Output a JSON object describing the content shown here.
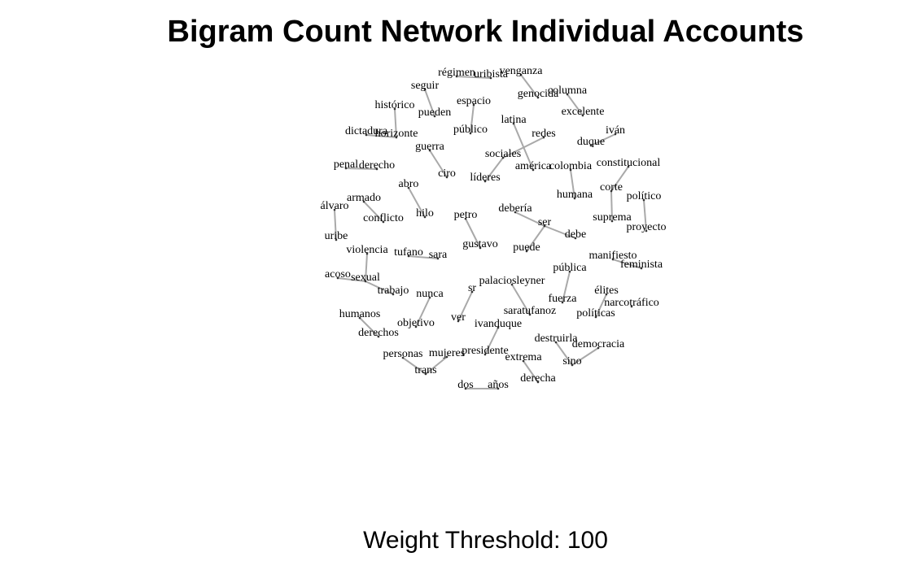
{
  "title": "Bigram Count Network Individual Accounts",
  "subtitle": "Weight Threshold: 100",
  "edge_color": "#a9a9a9",
  "nodes": [
    "régimen",
    "uribista",
    "venganza",
    "genocida",
    "columna",
    "excelente",
    "seguir",
    "pueden",
    "espacio",
    "público",
    "histórico",
    "horizonte",
    "dictadura",
    "latina",
    "redes",
    "iván",
    "duque",
    "sociales",
    "américa",
    "colombia",
    "constitucional",
    "guerra",
    "ciro",
    "líderes",
    "penal",
    "derecho",
    "abro",
    "hilo",
    "humana",
    "corte",
    "político",
    "armado",
    "conflicto",
    "álvaro",
    "uribe",
    "petro",
    "gustavo",
    "debería",
    "ser",
    "debe",
    "suprema",
    "proyecto",
    "violencia",
    "tufano",
    "sara",
    "puede",
    "manifiesto",
    "feminista",
    "pública",
    "acoso",
    "sexual",
    "trabajo",
    "nunca",
    "sr",
    "palaciosleyner",
    "fuerza",
    "élites",
    "narcotráfico",
    "humanos",
    "derechos",
    "ver",
    "objetivo",
    "saratufanoz",
    "políticas",
    "ivanduque",
    "destruirla",
    "democracia",
    "sino",
    "personas",
    "mujeres",
    "presidente",
    "extrema",
    "trans",
    "derecha",
    "dos",
    "años"
  ],
  "edges": [
    [
      "régimen",
      "uribista"
    ],
    [
      "venganza",
      "genocida"
    ],
    [
      "columna",
      "excelente"
    ],
    [
      "seguir",
      "pueden"
    ],
    [
      "espacio",
      "público"
    ],
    [
      "histórico",
      "horizonte"
    ],
    [
      "dictadura",
      "horizonte"
    ],
    [
      "latina",
      "américa"
    ],
    [
      "redes",
      "sociales"
    ],
    [
      "iván",
      "duque"
    ],
    [
      "sociales",
      "líderes"
    ],
    [
      "colombia",
      "humana"
    ],
    [
      "constitucional",
      "corte"
    ],
    [
      "corte",
      "suprema"
    ],
    [
      "político",
      "proyecto"
    ],
    [
      "guerra",
      "ciro"
    ],
    [
      "penal",
      "derecho"
    ],
    [
      "abro",
      "hilo"
    ],
    [
      "armado",
      "conflicto"
    ],
    [
      "álvaro",
      "uribe"
    ],
    [
      "petro",
      "gustavo"
    ],
    [
      "debería",
      "ser"
    ],
    [
      "ser",
      "debe"
    ],
    [
      "ser",
      "puede"
    ],
    [
      "violencia",
      "sexual"
    ],
    [
      "tufano",
      "sara"
    ],
    [
      "manifiesto",
      "feminista"
    ],
    [
      "pública",
      "fuerza"
    ],
    [
      "acoso",
      "sexual"
    ],
    [
      "sexual",
      "trabajo"
    ],
    [
      "nunca",
      "objetivo"
    ],
    [
      "sr",
      "ver"
    ],
    [
      "palaciosleyner",
      "saratufanoz"
    ],
    [
      "élites",
      "políticas"
    ],
    [
      "humanos",
      "derechos"
    ],
    [
      "ivanduque",
      "presidente"
    ],
    [
      "destruirla",
      "sino"
    ],
    [
      "democracia",
      "sino"
    ],
    [
      "personas",
      "trans"
    ],
    [
      "mujeres",
      "trans"
    ],
    [
      "extrema",
      "derecha"
    ],
    [
      "dos",
      "años"
    ]
  ]
}
